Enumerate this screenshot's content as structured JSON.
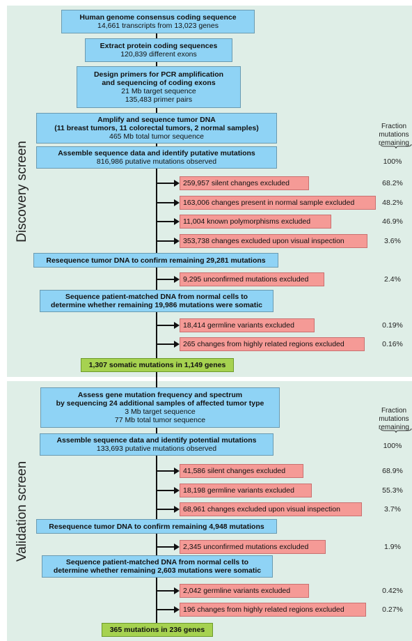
{
  "discovery": {
    "label": "Discovery screen",
    "steps": [
      {
        "title": "Human genome consensus coding sequence",
        "lines": [
          "14,661 transcripts from 13,023 genes"
        ]
      },
      {
        "title": "Extract protein coding sequences",
        "lines": [
          "120,839 different exons"
        ]
      },
      {
        "title": "Design primers for PCR amplification",
        "title2": "and sequencing of coding exons",
        "lines": [
          "21 Mb target sequence",
          "135,483 primer pairs"
        ]
      },
      {
        "title": "Amplify and sequence tumor DNA",
        "title2": "(11 breast tumors, 11 colorectal tumors, 2 normal samples)",
        "lines": [
          "465 Mb total tumor sequence"
        ]
      },
      {
        "title": "Assemble sequence data and identify putative mutations",
        "lines": [
          "816,986 putative mutations observed"
        ]
      },
      {
        "title": "Resequence tumor DNA to confirm remaining 29,281 mutations"
      },
      {
        "title": "Sequence patient-matched DNA from normal cells to",
        "title2": "determine whether remaining 19,986 mutations were somatic"
      }
    ],
    "exclusions": [
      "259,957 silent changes excluded",
      "163,006 changes present in normal sample excluded",
      "11,004 known polymorphisms excluded",
      "353,738 changes excluded upon visual inspection",
      "9,295 unconfirmed mutations excluded",
      "18,414 germline variants excluded",
      "265 changes from highly related regions excluded"
    ],
    "fraction_header": [
      "Fraction",
      "mutations",
      "remaining"
    ],
    "fractions": [
      "100%",
      "68.2%",
      "48.2%",
      "46.9%",
      "3.6%",
      "2.4%",
      "0.19%",
      "0.16%"
    ],
    "result": "1,307 somatic mutations in 1,149 genes"
  },
  "validation": {
    "label": "Validation screen",
    "steps": [
      {
        "title": "Assess gene mutation frequency and spectrum",
        "title2": "by sequencing 24 additional samples of affected tumor type",
        "lines": [
          "3 Mb target sequence",
          "77 Mb total tumor sequence"
        ]
      },
      {
        "title": "Assemble sequence data and identify potential mutations",
        "lines": [
          "133,693 putative mutations observed"
        ]
      },
      {
        "title": "Resequence tumor DNA to confirm remaining 4,948 mutations"
      },
      {
        "title": "Sequence patient-matched DNA from normal cells to",
        "title2": "determine whether remaining 2,603 mutations were somatic"
      }
    ],
    "exclusions": [
      "41,586 silent changes excluded",
      "18,198 germline variants excluded",
      "68,961 changes excluded upon visual inspection",
      "2,345 unconfirmed mutations excluded",
      "2,042 germline variants excluded",
      "196 changes from highly related regions excluded"
    ],
    "fraction_header": [
      "Fraction",
      "mutations",
      "remaining"
    ],
    "fractions": [
      "100%",
      "68.9%",
      "55.3%",
      "3.7%",
      "1.9%",
      "0.42%",
      "0.27%"
    ],
    "result": "365 mutations in 236 genes"
  },
  "colors": {
    "panel": "#dfeee7",
    "step_box": "#8fd3f5",
    "exclusion_box": "#f59a96",
    "result_box": "#a6d250"
  }
}
